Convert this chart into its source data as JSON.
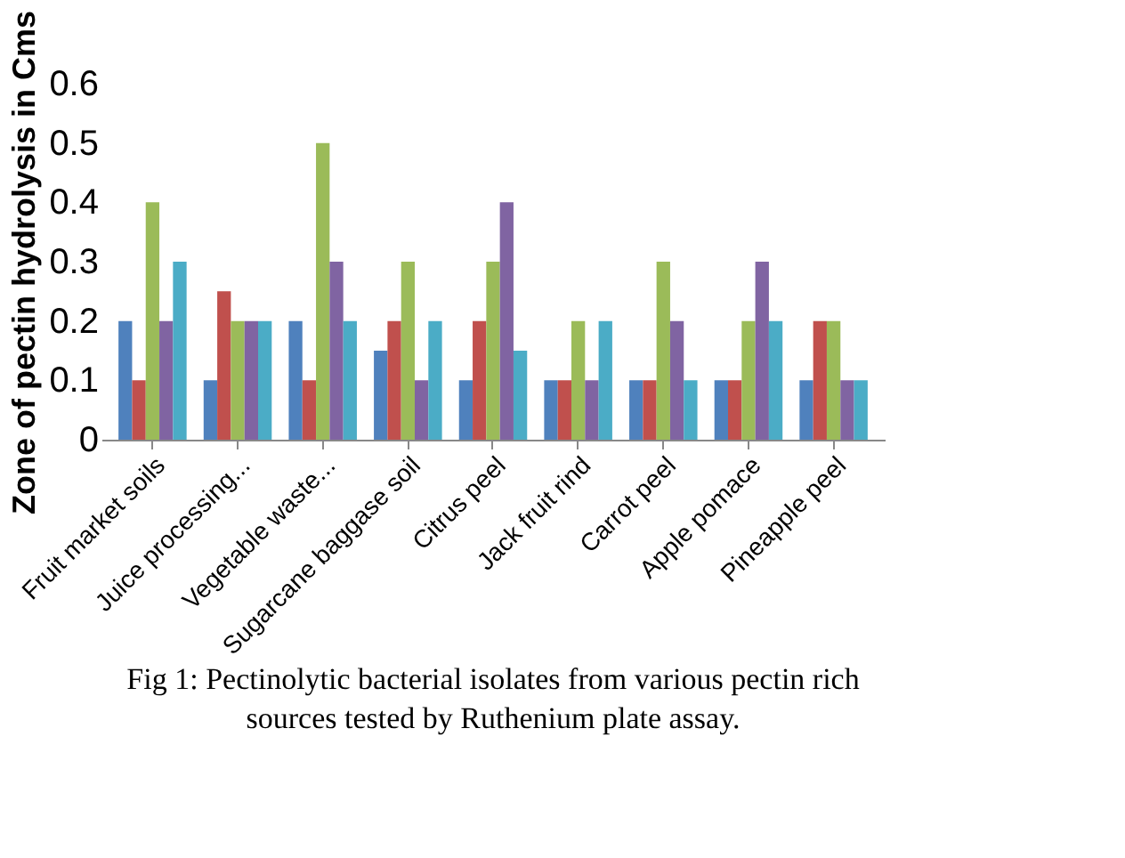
{
  "chart_data": {
    "type": "bar",
    "title": "Fig 1: Pectinolytic bacterial isolates from various pectin rich sources tested by Ruthenium plate assay.",
    "ylabel": "Zone of pectin hydrolysis in Cms",
    "categories": [
      "Fruit market soils",
      "Juice processing...",
      "Vegetable waste...",
      "Sugarcane baggase soil",
      "Citrus peel",
      "Jack fruit rind",
      "Carrot peel",
      "Apple pomace",
      "Pineapple peel"
    ],
    "series": [
      {
        "color": "#4f81bd",
        "values": [
          0.2,
          0.1,
          0.2,
          0.15,
          0.1,
          0.1,
          0.1,
          0.1,
          0.1
        ]
      },
      {
        "color": "#c0504d",
        "values": [
          0.1,
          0.25,
          0.1,
          0.2,
          0.2,
          0.1,
          0.1,
          0.1,
          0.2
        ]
      },
      {
        "color": "#9bbb59",
        "values": [
          0.4,
          0.2,
          0.5,
          0.3,
          0.3,
          0.2,
          0.3,
          0.2,
          0.2
        ]
      },
      {
        "color": "#8064a2",
        "values": [
          0.2,
          0.2,
          0.3,
          0.1,
          0.4,
          0.1,
          0.2,
          0.3,
          0.1
        ]
      },
      {
        "color": "#4bacc6",
        "values": [
          0.3,
          0.2,
          0.2,
          0.2,
          0.15,
          0.2,
          0.1,
          0.2,
          0.1
        ]
      }
    ],
    "ylim": [
      0,
      0.6
    ],
    "yticks": [
      0,
      0.1,
      0.2,
      0.3,
      0.4,
      0.5,
      0.6
    ],
    "grid": false,
    "legend": false
  }
}
